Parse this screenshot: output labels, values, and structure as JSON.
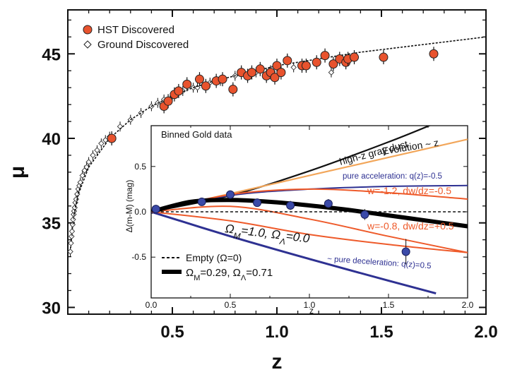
{
  "chart_data": [
    {
      "type": "scatter",
      "title": "",
      "xlabel": "z",
      "ylabel": "μ",
      "xlim": [
        0.0,
        2.0
      ],
      "ylim": [
        29.6,
        47.6
      ],
      "x_ticks": [
        "0.5",
        "1.0",
        "1.5",
        "2.0"
      ],
      "x_tick_values": [
        0.5,
        1.0,
        1.5,
        2.0
      ],
      "y_ticks": [
        "30",
        "35",
        "40",
        "45"
      ],
      "y_tick_values": [
        30,
        35,
        40,
        45
      ],
      "legend": {
        "placement": "top-left",
        "entries": [
          "HST Discovered",
          "Ground Discovered"
        ]
      },
      "series": [
        {
          "name": "HST Discovered",
          "marker": "filled-circle",
          "color": "#e8532e",
          "x": [
            0.21,
            0.46,
            0.48,
            0.51,
            0.53,
            0.57,
            0.63,
            0.66,
            0.71,
            0.74,
            0.79,
            0.83,
            0.86,
            0.88,
            0.92,
            0.95,
            0.97,
            0.99,
            1.0,
            1.02,
            1.05,
            1.12,
            1.14,
            1.19,
            1.23,
            1.27,
            1.3,
            1.33,
            1.34,
            1.37,
            1.51,
            1.75
          ],
          "y": [
            40.0,
            41.9,
            42.2,
            42.6,
            42.8,
            43.2,
            43.5,
            43.1,
            43.4,
            43.5,
            42.9,
            43.9,
            43.7,
            43.9,
            44.1,
            43.7,
            43.9,
            43.6,
            44.3,
            43.9,
            44.6,
            44.3,
            44.3,
            44.5,
            44.9,
            44.4,
            44.7,
            44.5,
            44.7,
            44.8,
            44.8,
            45.0
          ]
        },
        {
          "name": "Ground Discovered",
          "marker": "open-diamond",
          "color": "#333333",
          "x": [
            0.012,
            0.015,
            0.018,
            0.02,
            0.023,
            0.025,
            0.028,
            0.03,
            0.033,
            0.036,
            0.04,
            0.045,
            0.05,
            0.055,
            0.06,
            0.07,
            0.08,
            0.09,
            0.1,
            0.12,
            0.14,
            0.16,
            0.18,
            0.2,
            0.25,
            0.3,
            0.35,
            0.4,
            0.43,
            0.46,
            0.5,
            0.55,
            0.6,
            0.62,
            0.68,
            0.73,
            0.8,
            0.9,
            1.08,
            1.26
          ],
          "y": [
            33.3,
            33.8,
            34.2,
            34.5,
            34.9,
            35.2,
            35.5,
            35.7,
            35.9,
            36.2,
            36.4,
            36.7,
            37.0,
            37.2,
            37.4,
            37.8,
            38.1,
            38.3,
            38.6,
            39.0,
            39.3,
            39.7,
            39.9,
            40.1,
            40.7,
            41.1,
            41.5,
            41.9,
            42.1,
            42.3,
            42.5,
            42.8,
            43.0,
            43.0,
            43.3,
            43.4,
            43.7,
            43.9,
            44.2,
            43.9
          ]
        },
        {
          "name": "",
          "marker": "dashed-line",
          "color": "#111111",
          "x": [
            0.03,
            0.05,
            0.1,
            0.2,
            0.3,
            0.4,
            0.5,
            0.6,
            0.7,
            0.8,
            0.9,
            1.0,
            1.2,
            1.4,
            1.6,
            1.8,
            2.0
          ],
          "y": [
            35.5,
            36.7,
            38.3,
            40.0,
            41.1,
            41.9,
            42.5,
            43.0,
            43.4,
            43.7,
            44.0,
            44.3,
            44.7,
            45.1,
            45.4,
            45.7,
            46.0
          ]
        }
      ]
    },
    {
      "type": "line",
      "title": "Binned Gold data",
      "xlabel": "z",
      "ylabel": "Δ(m-M) (mag)",
      "xlim": [
        0.0,
        2.0
      ],
      "ylim": [
        -0.95,
        0.95
      ],
      "x_ticks": [
        "0.0",
        "0.5",
        "1.0",
        "1.5",
        "2.0"
      ],
      "x_tick_values": [
        0.0,
        0.5,
        1.0,
        1.5,
        2.0
      ],
      "y_ticks": [
        "0.5",
        "0.0",
        "-0.5"
      ],
      "y_tick_values": [
        0.5,
        0.0,
        -0.5
      ],
      "grid": false,
      "legend": {
        "placement": "bottom-left",
        "entries": [
          "Empty (Ω=0)",
          "ΩM=0.29, ΩΛ=0.71"
        ]
      },
      "series": [
        {
          "name": "high-z gray dust",
          "color": "#111111",
          "x": [
            0.0,
            0.5,
            1.0,
            1.5,
            1.8
          ],
          "y": [
            0.0,
            0.18,
            0.45,
            0.77,
            0.98
          ]
        },
        {
          "name": "Evolution ~ z",
          "color": "#f2a65a",
          "x": [
            0.0,
            0.5,
            1.0,
            1.5,
            2.0
          ],
          "y": [
            0.0,
            0.2,
            0.4,
            0.6,
            0.8
          ]
        },
        {
          "name": "pure acceleration: q(z)=-0.5",
          "color": "#2e3192",
          "x": [
            0.0,
            0.5,
            1.0,
            1.5,
            2.0
          ],
          "y": [
            0.0,
            0.18,
            0.25,
            0.28,
            0.29
          ]
        },
        {
          "name": "w=-1.2, dw/dz=-0.5",
          "color": "#ee5a2a",
          "x": [
            0.0,
            0.5,
            1.0,
            1.5,
            2.0
          ],
          "y": [
            0.0,
            0.19,
            0.25,
            0.21,
            0.14
          ]
        },
        {
          "name": "w=-0.8, dw/dz=+0.5",
          "color": "#ee5a2a",
          "x": [
            0.0,
            0.5,
            1.0,
            1.5,
            2.0
          ],
          "y": [
            0.0,
            0.06,
            -0.08,
            -0.27,
            -0.45
          ]
        },
        {
          "name": "ΩM=0.29, ΩΛ=0.71",
          "color": "#000000",
          "x": [
            0.0,
            0.25,
            0.5,
            0.75,
            1.0,
            1.25,
            1.5,
            1.75,
            2.0
          ],
          "y": [
            0.0,
            0.11,
            0.13,
            0.11,
            0.07,
            0.02,
            -0.04,
            -0.1,
            -0.16
          ]
        },
        {
          "name": "ΩM=1.0, ΩΛ=0.0",
          "color": "#2e3192",
          "x": [
            0.0,
            0.5,
            1.0,
            1.5,
            1.8
          ],
          "y": [
            0.0,
            -0.27,
            -0.52,
            -0.76,
            -0.9
          ]
        },
        {
          "name": "pure deceleration: q(z)=0.5",
          "color": "#ee5a2a",
          "x": [
            0.0,
            0.5,
            1.0,
            1.5,
            2.0
          ],
          "y": [
            0.0,
            -0.1,
            -0.25,
            -0.36,
            -0.45
          ]
        },
        {
          "name": "Empty (Ω=0)",
          "color": "#111111",
          "x": [
            0.0,
            2.0
          ],
          "y": [
            0.0,
            0.0
          ]
        }
      ],
      "points": {
        "name": "",
        "x": [
          0.03,
          0.32,
          0.5,
          0.67,
          0.88,
          1.12,
          1.35,
          1.61
        ],
        "y": [
          0.03,
          0.11,
          0.19,
          0.1,
          0.07,
          0.09,
          -0.03,
          -0.44
        ],
        "yerr": [
          0.02,
          0.04,
          0.04,
          0.04,
          0.05,
          0.05,
          0.06,
          0.14
        ]
      },
      "annotations": {
        "gray_dust": "high-z gray dust",
        "evolution": "Evolution ~ z",
        "accel": "pure acceleration: q(z)=-0.5",
        "w12": "w=-1.2, dw/dz=-0.5",
        "w08": "w=-0.8, dw/dz=+0.5",
        "decel": "~ pure deceleration: q(z)=0.5"
      }
    }
  ]
}
